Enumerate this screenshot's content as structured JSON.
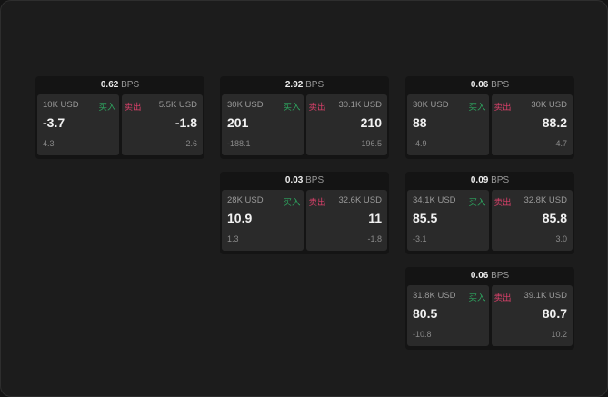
{
  "unit": "BPS",
  "buy_label": "买入",
  "sell_label": "卖出",
  "cards": [
    {
      "bps": "0.62",
      "bid_size": "10K USD",
      "bid": "-3.7",
      "bid_chg": "4.3",
      "ask_size": "5.5K USD",
      "ask": "-1.8",
      "ask_chg": "-2.6"
    },
    {
      "bps": "2.92",
      "bid_size": "30K USD",
      "bid": "201",
      "bid_chg": "-188.1",
      "ask_size": "30.1K USD",
      "ask": "210",
      "ask_chg": "196.5"
    },
    {
      "bps": "0.06",
      "bid_size": "30K USD",
      "bid": "88",
      "bid_chg": "-4.9",
      "ask_size": "30K USD",
      "ask": "88.2",
      "ask_chg": "4.7"
    },
    {
      "bps": "0.03",
      "bid_size": "28K USD",
      "bid": "10.9",
      "bid_chg": "1.3",
      "ask_size": "32.6K USD",
      "ask": "11",
      "ask_chg": "-1.8"
    },
    {
      "bps": "0.09",
      "bid_size": "34.1K USD",
      "bid": "85.5",
      "bid_chg": "-3.1",
      "ask_size": "32.8K USD",
      "ask": "85.8",
      "ask_chg": "3.0"
    },
    {
      "bps": "0.06",
      "bid_size": "31.8K USD",
      "bid": "80.5",
      "bid_chg": "-10.8",
      "ask_size": "39.1K USD",
      "ask": "80.7",
      "ask_chg": "10.2"
    }
  ],
  "colors": {
    "buy": "#2ea760",
    "sell": "#d9406a"
  }
}
